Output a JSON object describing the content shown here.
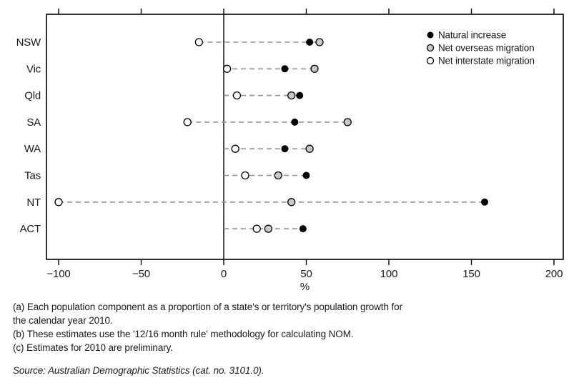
{
  "chart_data": {
    "type": "scatter",
    "variant": "horizontal-dot-plot",
    "title": "",
    "xlabel": "%",
    "categories": [
      "NSW",
      "Vic",
      "Qld",
      "SA",
      "WA",
      "Tas",
      "NT",
      "ACT"
    ],
    "series": [
      {
        "name": "Natural increase",
        "marker": "filled-black",
        "values": [
          52,
          37,
          46,
          43,
          37,
          50,
          158,
          48
        ]
      },
      {
        "name": "Net overseas migration",
        "marker": "filled-gray",
        "values": [
          58,
          55,
          41,
          75,
          52,
          33,
          41,
          27
        ]
      },
      {
        "name": "Net interstate migration",
        "marker": "open",
        "values": [
          -15,
          2,
          8,
          -22,
          7,
          13,
          -100,
          20
        ]
      }
    ],
    "x_ticks": [
      -100,
      -50,
      0,
      50,
      100,
      150,
      200
    ],
    "x_tick_labels": [
      "−100",
      "−50",
      "0",
      "50",
      "100",
      "150",
      "200"
    ],
    "xlim": [
      -107,
      206
    ],
    "grid": false,
    "zero_line": true,
    "connector_style": "gray dashed line from zero axis (or most negative point) to most positive point in each row",
    "legend_position": "top-right-inside",
    "legend": [
      "Natural increase",
      "Net overseas migration",
      "Net interstate migration"
    ]
  },
  "colors": {
    "marker_black": "#000000",
    "marker_gray": "#c8c8c8",
    "marker_open_fill": "#ffffff",
    "marker_stroke": "#000000",
    "connector": "#949494",
    "axis": "#000000",
    "text": "#1a1a1a"
  },
  "footnotes": {
    "lines": [
      "(a) Each population component as a proportion of a state's or territory's population growth for",
      "the calendar year 2010.",
      "(b) These estimates use the '12/16 month rule' methodology for calculating NOM.",
      "(c) Estimates for 2010 are preliminary."
    ]
  },
  "source": {
    "text": "Source: Australian Demographic Statistics (cat. no. 3101.0)."
  }
}
